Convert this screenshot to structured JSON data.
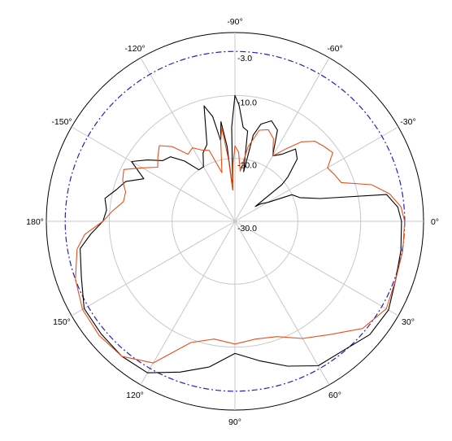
{
  "chart_data": {
    "type": "polar-line",
    "title": "",
    "angle_labels": [
      {
        "angle": 0,
        "label": "0°"
      },
      {
        "angle": 30,
        "label": "30°"
      },
      {
        "angle": 60,
        "label": "60°"
      },
      {
        "angle": 90,
        "label": "90°"
      },
      {
        "angle": 120,
        "label": "120°"
      },
      {
        "angle": 150,
        "label": "150°"
      },
      {
        "angle": 180,
        "label": "180°"
      },
      {
        "angle": 210,
        "label": "-150°"
      },
      {
        "angle": 240,
        "label": "-120°"
      },
      {
        "angle": 270,
        "label": "-90°"
      },
      {
        "angle": 300,
        "label": "-60°"
      },
      {
        "angle": 330,
        "label": "-30°"
      }
    ],
    "ring_labels": [
      {
        "value": -3,
        "label": "-3.0"
      },
      {
        "value": -10,
        "label": "-10.0"
      },
      {
        "value": -20,
        "label": "-20.0"
      },
      {
        "value": -30,
        "label": "-30.0"
      }
    ],
    "r_range": [
      -30,
      0
    ],
    "reference_ring_value": -3,
    "grid": true,
    "series": [
      {
        "color": "#000000",
        "points": [
          [
            0,
            -3.5
          ],
          [
            10,
            -3.2
          ],
          [
            20,
            -2.8
          ],
          [
            30,
            -1.8
          ],
          [
            40,
            -2.0
          ],
          [
            50,
            -3.2
          ],
          [
            60,
            -3.5
          ],
          [
            70,
            -5.5
          ],
          [
            80,
            -7.5
          ],
          [
            90,
            -9.0
          ],
          [
            100,
            -6.5
          ],
          [
            110,
            -4.5
          ],
          [
            120,
            -2.2
          ],
          [
            130,
            -2.0
          ],
          [
            140,
            -2.2
          ],
          [
            150,
            -2.3
          ],
          [
            160,
            -4.0
          ],
          [
            170,
            -5.0
          ],
          [
            175,
            -7.0
          ],
          [
            180,
            -9.0
          ],
          [
            185,
            -9.5
          ],
          [
            190,
            -9.0
          ],
          [
            195,
            -10.5
          ],
          [
            200,
            -11.5
          ],
          [
            205,
            -14.0
          ],
          [
            210,
            -11.0
          ],
          [
            215,
            -13.0
          ],
          [
            220,
            -15.0
          ],
          [
            225,
            -15.5
          ],
          [
            230,
            -17.5
          ],
          [
            235,
            -20.0
          ],
          [
            240,
            -20.0
          ],
          [
            245,
            -18.0
          ],
          [
            250,
            -17.0
          ],
          [
            255,
            -11.0
          ],
          [
            258,
            -13.0
          ],
          [
            260,
            -17.0
          ],
          [
            262,
            -14.0
          ],
          [
            264,
            -18.0
          ],
          [
            266,
            -25.0
          ],
          [
            268,
            -15.0
          ],
          [
            270,
            -10.0
          ],
          [
            272,
            -11.5
          ],
          [
            275,
            -15.0
          ],
          [
            278,
            -15.5
          ],
          [
            280,
            -22.0
          ],
          [
            282,
            -16.0
          ],
          [
            285,
            -14.0
          ],
          [
            290,
            -13.0
          ],
          [
            295,
            -14.0
          ],
          [
            300,
            -18.0
          ],
          [
            305,
            -17.0
          ],
          [
            310,
            -15.0
          ],
          [
            315,
            -16.0
          ],
          [
            320,
            -19.0
          ],
          [
            322,
            -20.5
          ],
          [
            324,
            -26.0
          ],
          [
            326,
            -25.0
          ],
          [
            330,
            -24.0
          ],
          [
            335,
            -20.0
          ],
          [
            340,
            -19.0
          ],
          [
            345,
            -16.0
          ],
          [
            350,
            -5.5
          ],
          [
            355,
            -4.0
          ]
        ]
      },
      {
        "color": "#e8501a",
        "points": [
          [
            0,
            -3.0
          ],
          [
            10,
            -2.9
          ],
          [
            20,
            -2.8
          ],
          [
            30,
            -2.2
          ],
          [
            40,
            -3.5
          ],
          [
            50,
            -6.5
          ],
          [
            60,
            -8.5
          ],
          [
            70,
            -10.5
          ],
          [
            80,
            -11.0
          ],
          [
            90,
            -10.5
          ],
          [
            100,
            -11.0
          ],
          [
            110,
            -9.5
          ],
          [
            120,
            -4.0
          ],
          [
            130,
            -2.0
          ],
          [
            140,
            -1.8
          ],
          [
            150,
            -2.0
          ],
          [
            160,
            -3.0
          ],
          [
            170,
            -4.5
          ],
          [
            175,
            -6.0
          ],
          [
            180,
            -9.0
          ],
          [
            185,
            -10.5
          ],
          [
            190,
            -12.0
          ],
          [
            195,
            -12.0
          ],
          [
            200,
            -11.0
          ],
          [
            205,
            -10.5
          ],
          [
            210,
            -13.0
          ],
          [
            215,
            -15.0
          ],
          [
            220,
            -14.0
          ],
          [
            225,
            -13.0
          ],
          [
            230,
            -14.5
          ],
          [
            235,
            -17.0
          ],
          [
            240,
            -16.5
          ],
          [
            245,
            -17.5
          ],
          [
            250,
            -18.0
          ],
          [
            252,
            -20.0
          ],
          [
            255,
            -22.0
          ],
          [
            260,
            -17.0
          ],
          [
            262,
            -15.0
          ],
          [
            264,
            -20.0
          ],
          [
            266,
            -25.0
          ],
          [
            268,
            -21.0
          ],
          [
            270,
            -18.0
          ],
          [
            273,
            -19.0
          ],
          [
            276,
            -22.0
          ],
          [
            280,
            -18.0
          ],
          [
            285,
            -15.0
          ],
          [
            290,
            -14.5
          ],
          [
            295,
            -15.5
          ],
          [
            300,
            -18.0
          ],
          [
            305,
            -16.0
          ],
          [
            310,
            -13.5
          ],
          [
            315,
            -12.0
          ],
          [
            320,
            -11.5
          ],
          [
            325,
            -11.0
          ],
          [
            330,
            -13.0
          ],
          [
            335,
            -12.5
          ],
          [
            340,
            -12.0
          ],
          [
            345,
            -7.5
          ],
          [
            350,
            -5.0
          ],
          [
            355,
            -3.5
          ]
        ]
      }
    ]
  }
}
